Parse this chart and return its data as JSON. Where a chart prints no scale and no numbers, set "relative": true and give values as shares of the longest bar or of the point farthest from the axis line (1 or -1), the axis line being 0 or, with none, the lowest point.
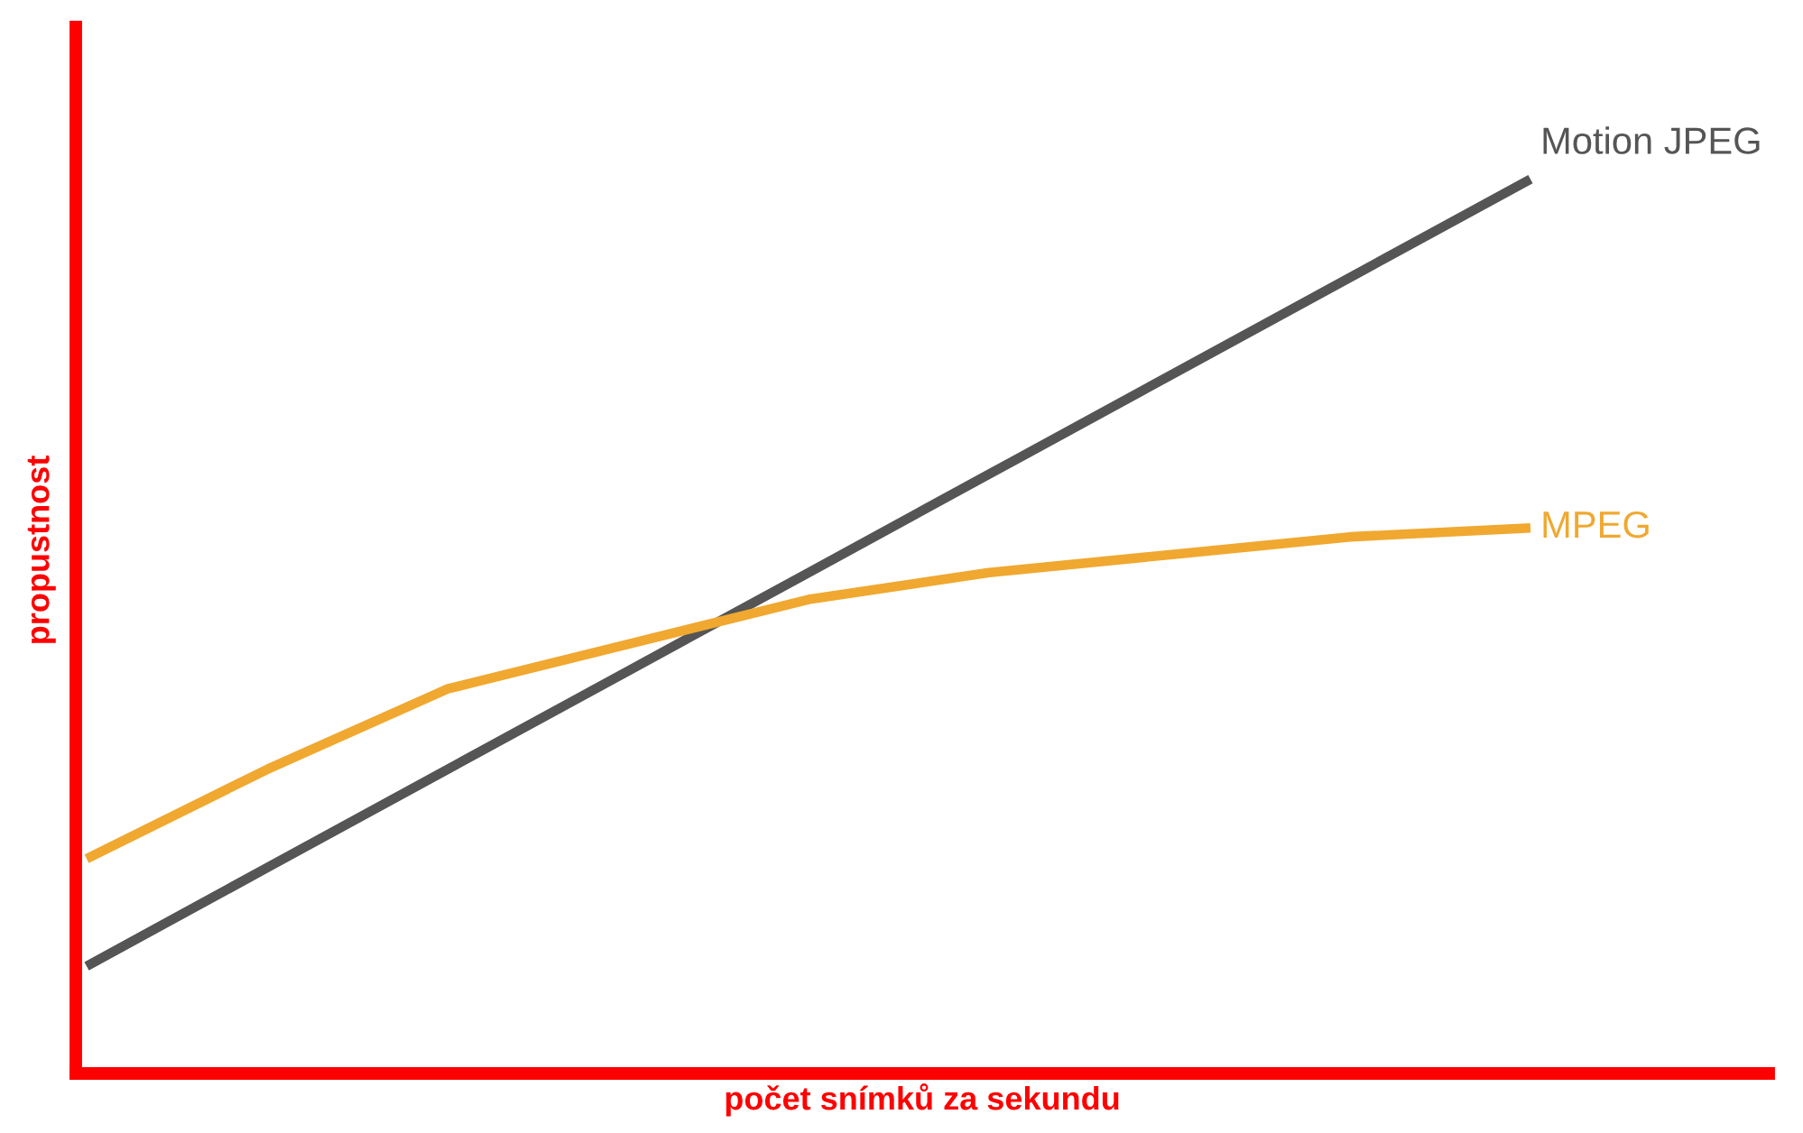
{
  "chart_data": {
    "type": "line",
    "relative": true,
    "xlabel": "počet snímků za sekundu",
    "ylabel": "propustnost",
    "categories": [
      null,
      null,
      null,
      null,
      null,
      null,
      null,
      null,
      null,
      null
    ],
    "series": [
      {
        "name": "Motion JPEG",
        "color": "#555555",
        "values": [
          0.12,
          0.23,
          0.34,
          0.45,
          0.56,
          0.67,
          0.78,
          0.89,
          1.0,
          null
        ]
      },
      {
        "name": "MPEG",
        "color": "#f0a830",
        "values": [
          0.24,
          0.34,
          0.43,
          0.48,
          0.53,
          0.56,
          0.58,
          0.6,
          0.61,
          null
        ]
      }
    ],
    "legend": false,
    "marker": "none",
    "line_style": "solid"
  }
}
